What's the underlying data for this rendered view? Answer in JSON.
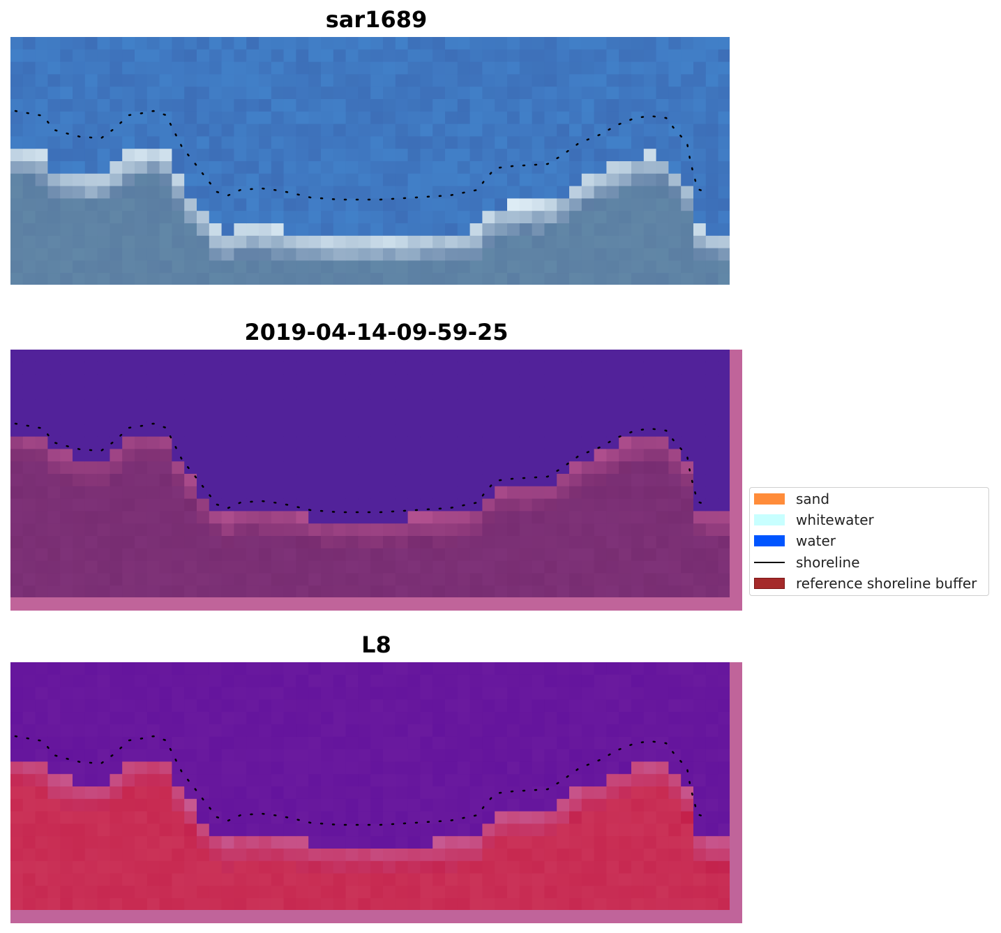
{
  "panels": [
    {
      "title": "sar1689",
      "style": "rgb"
    },
    {
      "title": "2019-04-14-09-59-25",
      "style": "classified"
    },
    {
      "title": "L8",
      "style": "index"
    }
  ],
  "legend": {
    "items": [
      {
        "label": "sand",
        "color": "#ff8c3a",
        "kind": "patch"
      },
      {
        "label": "whitewater",
        "color": "#c8ffff",
        "kind": "patch"
      },
      {
        "label": "water",
        "color": "#0055ff",
        "kind": "patch"
      },
      {
        "label": "shoreline",
        "color": "#000000",
        "kind": "line"
      },
      {
        "label": "reference shoreline buffer",
        "color": "#a52a2a",
        "kind": "patch"
      }
    ]
  },
  "colors": {
    "water_rgb": "#3a6fb5",
    "land_rgb": "#5677a0",
    "water_class": "#52229a",
    "land_class": "#73296d",
    "buffer": "#c0649a",
    "water_index": "#6a1a9e",
    "land_index": "#c4204a"
  }
}
